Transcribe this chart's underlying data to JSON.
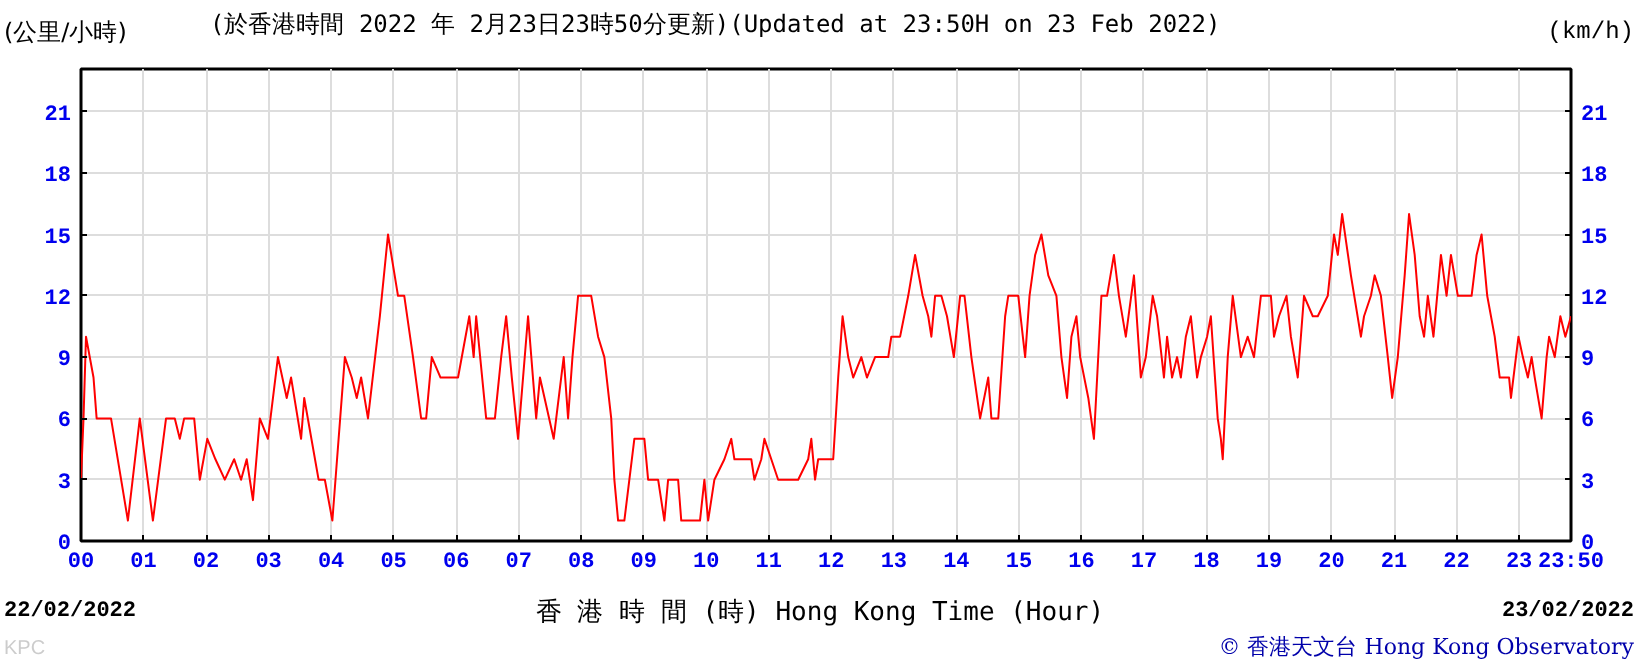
{
  "chart_data": {
    "type": "line",
    "title": "(於香港時間 2022 年 2月23日23時50分更新)(Updated at 23:50H on 23 Feb 2022)",
    "ylabel": "(公里/小時)",
    "y2label": "(km/h)",
    "xlabel": "香 港 時 間 (時) Hong Kong Time (Hour)",
    "annotations": [
      "22/02/2022",
      "23/02/2022",
      "© 香港天文台 Hong Kong Observatory",
      "KPC"
    ],
    "x": [
      0,
      0.04,
      0.08,
      0.2,
      0.25,
      0.48,
      0.75,
      0.94,
      1.15,
      1.36,
      1.5,
      1.58,
      1.65,
      1.81,
      1.9,
      2.02,
      2.15,
      2.3,
      2.45,
      2.56,
      2.65,
      2.75,
      2.86,
      2.99,
      3.15,
      3.29,
      3.36,
      3.52,
      3.57,
      3.8,
      3.9,
      4.02,
      4.22,
      4.33,
      4.41,
      4.48,
      4.59,
      4.78,
      4.91,
      5.07,
      5.17,
      5.31,
      5.44,
      5.52,
      5.61,
      5.75,
      6.03,
      6.21,
      6.28,
      6.32,
      6.48,
      6.62,
      6.72,
      6.8,
      6.89,
      6.99,
      7.15,
      7.28,
      7.34,
      7.56,
      7.72,
      7.79,
      7.86,
      7.95,
      8.16,
      8.27,
      8.37,
      8.48,
      8.53,
      8.59,
      8.69,
      8.85,
      9.01,
      9.07,
      9.23,
      9.33,
      9.39,
      9.55,
      9.6,
      9.9,
      9.97,
      10.03,
      10.13,
      10.29,
      10.4,
      10.45,
      10.72,
      10.77,
      10.88,
      10.93,
      11.04,
      11.15,
      11.47,
      11.63,
      11.68,
      11.74,
      11.79,
      12.03,
      12.11,
      12.18,
      12.27,
      12.35,
      12.48,
      12.57,
      12.7,
      12.91,
      12.96,
      13.1,
      13.23,
      13.34,
      13.46,
      13.55,
      13.6,
      13.66,
      13.76,
      13.85,
      13.96,
      14.06,
      14.13,
      14.24,
      14.38,
      14.51,
      14.56,
      14.67,
      14.78,
      14.83,
      14.99,
      15.1,
      15.17,
      15.26,
      15.36,
      15.47,
      15.6,
      15.68,
      15.77,
      15.84,
      15.92,
      15.98,
      16.11,
      16.2,
      16.32,
      16.41,
      16.52,
      16.6,
      16.71,
      16.84,
      16.95,
      17.03,
      17.14,
      17.21,
      17.32,
      17.37,
      17.45,
      17.53,
      17.59,
      17.67,
      17.75,
      17.85,
      17.91,
      18.01,
      18.07,
      18.18,
      18.23,
      18.26,
      18.34,
      18.42,
      18.55,
      18.66,
      18.76,
      18.87,
      19.03,
      19.08,
      19.16,
      19.28,
      19.35,
      19.46,
      19.56,
      19.7,
      19.78,
      19.94,
      20.04,
      20.1,
      20.17,
      20.31,
      20.47,
      20.52,
      20.63,
      20.69,
      20.79,
      20.9,
      20.97,
      21.06,
      21.17,
      21.24,
      21.33,
      21.41,
      21.48,
      21.54,
      21.63,
      21.75,
      21.84,
      21.91,
      22.02,
      22.24,
      22.32,
      22.4,
      22.49,
      22.61,
      22.69,
      22.84,
      22.87,
      22.99,
      23.06,
      23.14,
      23.2,
      23.25,
      23.36,
      23.44,
      23.48,
      23.57,
      23.66,
      23.74,
      23.83
    ],
    "series": [
      {
        "color": "#ff0000",
        "values": [
          3,
          6,
          10,
          8,
          6,
          6,
          1,
          6,
          1,
          6,
          6,
          5,
          6,
          6,
          3,
          5,
          4,
          3,
          4,
          3,
          4,
          2,
          6,
          5,
          9,
          7,
          8,
          5,
          7,
          3,
          3,
          1,
          9,
          8,
          7,
          8,
          6,
          11,
          15,
          12,
          12,
          9,
          6,
          6,
          9,
          8,
          8,
          11,
          9,
          11,
          6,
          6,
          9,
          11,
          8,
          5,
          11,
          6,
          8,
          5,
          9,
          6,
          9,
          12,
          12,
          10,
          9,
          6,
          3,
          1,
          1,
          5,
          5,
          3,
          3,
          1,
          3,
          3,
          1,
          1,
          3,
          1,
          3,
          4,
          5,
          4,
          4,
          3,
          4,
          5,
          4,
          3,
          3,
          4,
          5,
          3,
          4,
          4,
          8,
          11,
          9,
          8,
          9,
          8,
          9,
          9,
          10,
          10,
          12,
          14,
          12,
          11,
          10,
          12,
          12,
          11,
          9,
          12,
          12,
          9,
          6,
          8,
          6,
          6,
          11,
          12,
          12,
          9,
          12,
          14,
          15,
          13,
          12,
          9,
          7,
          10,
          11,
          9,
          7,
          5,
          12,
          12,
          14,
          12,
          10,
          13,
          8,
          9,
          12,
          11,
          8,
          10,
          8,
          9,
          8,
          10,
          11,
          8,
          9,
          10,
          11,
          6,
          5,
          4,
          9,
          12,
          9,
          10,
          9,
          12,
          12,
          10,
          11,
          12,
          10,
          8,
          12,
          11,
          11,
          12,
          15,
          14,
          16,
          13,
          10,
          11,
          12,
          13,
          12,
          9,
          7,
          9,
          13,
          16,
          14,
          11,
          10,
          12,
          10,
          14,
          12,
          14,
          12,
          12,
          14,
          15,
          12,
          10,
          8,
          8,
          7,
          10,
          9,
          8,
          9,
          8,
          6,
          9,
          10,
          9,
          11,
          10,
          11
        ]
      }
    ],
    "xlim": [
      0,
      23.83
    ],
    "ylim": [
      0,
      23.1
    ],
    "xticks": [
      {
        "value": 0,
        "label": "00"
      },
      {
        "value": 1,
        "label": "01"
      },
      {
        "value": 2,
        "label": "02"
      },
      {
        "value": 3,
        "label": "03"
      },
      {
        "value": 4,
        "label": "04"
      },
      {
        "value": 5,
        "label": "05"
      },
      {
        "value": 6,
        "label": "06"
      },
      {
        "value": 7,
        "label": "07"
      },
      {
        "value": 8,
        "label": "08"
      },
      {
        "value": 9,
        "label": "09"
      },
      10,
      11,
      12,
      13,
      14,
      15,
      16,
      17,
      18,
      19,
      20,
      21,
      22,
      23,
      {
        "value": 23.83,
        "label": "23:50"
      }
    ],
    "yticks": [
      0,
      3,
      6,
      9,
      12,
      15,
      18,
      21
    ],
    "y2lim": [
      0,
      23.1
    ],
    "y2ticks": [
      0,
      3,
      6,
      9,
      12,
      15,
      18,
      21
    ],
    "grid": true,
    "marker": "none",
    "line_style": "solid"
  }
}
